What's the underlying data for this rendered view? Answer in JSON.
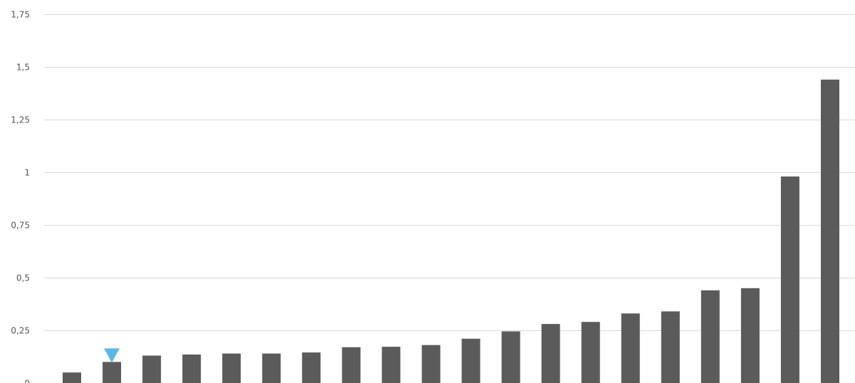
{
  "chart_data": {
    "type": "bar",
    "title": "",
    "xlabel": "",
    "ylabel": "",
    "ylim": [
      0,
      1.75
    ],
    "y_ticks": [
      0,
      0.25,
      0.5,
      0.75,
      1,
      1.25,
      1.5,
      1.75
    ],
    "y_tick_labels": [
      "0",
      "0,25",
      "0,5",
      "0,75",
      "1",
      "1,25",
      "1,5",
      "1,75"
    ],
    "grid": true,
    "legend": "none",
    "values": [
      0.05,
      0.1,
      0.13,
      0.135,
      0.14,
      0.14,
      0.145,
      0.17,
      0.172,
      0.18,
      0.21,
      0.245,
      0.28,
      0.29,
      0.33,
      0.34,
      0.44,
      0.45,
      0.98,
      1.44
    ],
    "highlight_index": 1,
    "colors": {
      "bar": "#5b5b5b",
      "marker": "#5bb8e6",
      "grid": "#d9d9d9",
      "tick_text": "#555555"
    }
  }
}
